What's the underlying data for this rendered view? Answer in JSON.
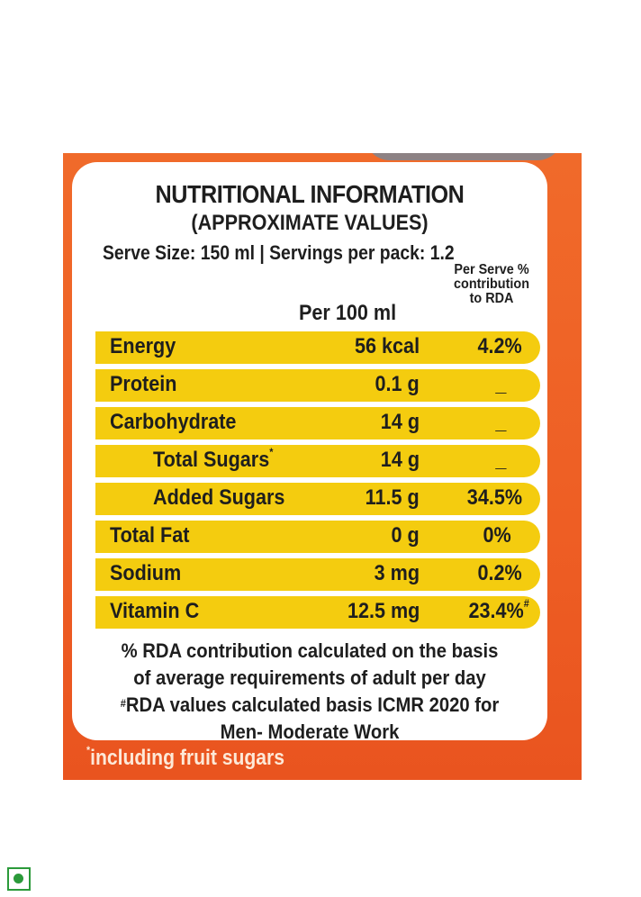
{
  "title": "NUTRITIONAL INFORMATION",
  "subtitle": "(APPROXIMATE VALUES)",
  "serve_info": "Serve Size: 150 ml | Servings per pack: 1.2",
  "columns": {
    "per100": "Per 100 ml",
    "rda_line1": "Per Serve %",
    "rda_line2": "contribution",
    "rda_line3": "to RDA"
  },
  "rows": [
    {
      "name": "Energy",
      "value": "56 kcal",
      "rda": "4.2%"
    },
    {
      "name": "Protein",
      "value": "0.1 g",
      "rda": "_"
    },
    {
      "name": "Carbohydrate",
      "value": "14 g",
      "rda": "_"
    },
    {
      "name": "Total Sugars",
      "name_mark": "*",
      "value": "14 g",
      "rda": "_"
    },
    {
      "name": "Added Sugars",
      "value": "11.5 g",
      "rda": "34.5%"
    },
    {
      "name": "Total Fat",
      "value": "0 g",
      "rda": "0%"
    },
    {
      "name": "Sodium",
      "value": "3 mg",
      "rda": "0.2%"
    },
    {
      "name": "Vitamin C",
      "value": "12.5 mg",
      "rda": "23.4%",
      "rda_mark": "#"
    }
  ],
  "footnotes": {
    "line1": "% RDA contribution calculated on the basis",
    "line2": "of average requirements of adult per day",
    "line3_mark": "#",
    "line3": "RDA values calculated basis ICMR 2020 for",
    "line4": "Men- Moderate Work"
  },
  "fruit_note_mark": "*",
  "fruit_note": "including fruit sugars",
  "colors": {
    "panel": "#ee5e24",
    "row_highlight": "#f4cc0f",
    "veg_mark": "#2b9a3a"
  }
}
